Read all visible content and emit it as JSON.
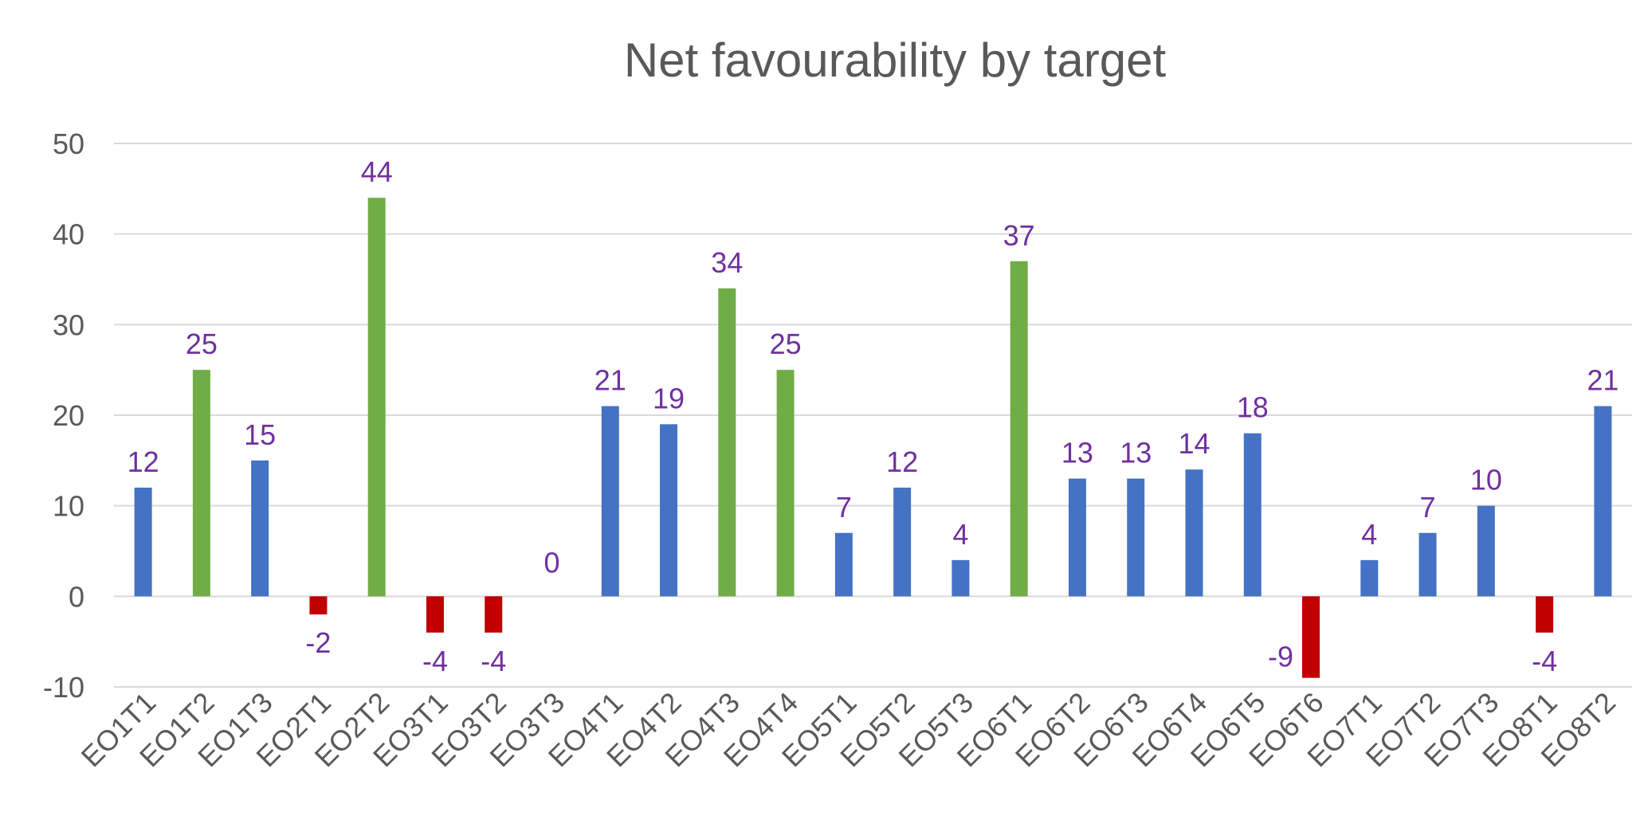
{
  "chart_data": {
    "type": "bar",
    "title": "Net favourability by target",
    "xlabel": "",
    "ylabel": "",
    "ylim": [
      -10,
      50
    ],
    "yticks": [
      -10,
      0,
      10,
      20,
      30,
      40,
      50
    ],
    "grid": true,
    "legend": "none",
    "categories": [
      "EO1T1",
      "EO1T2",
      "EO1T3",
      "EO2T1",
      "EO2T2",
      "EO3T1",
      "EO3T2",
      "EO3T3",
      "EO4T1",
      "EO4T2",
      "EO4T3",
      "EO4T4",
      "EO5T1",
      "EO5T2",
      "EO5T3",
      "EO6T1",
      "EO6T2",
      "EO6T3",
      "EO6T4",
      "EO6T5",
      "EO6T6",
      "EO7T1",
      "EO7T2",
      "EO7T3",
      "EO8T1",
      "EO8T2"
    ],
    "values": [
      12,
      25,
      15,
      -2,
      44,
      -4,
      -4,
      0,
      21,
      19,
      34,
      25,
      7,
      12,
      4,
      37,
      13,
      13,
      14,
      18,
      -9,
      4,
      7,
      10,
      -4,
      21
    ],
    "bar_colors": [
      "#4472c4",
      "#70ad47",
      "#4472c4",
      "#c00000",
      "#70ad47",
      "#c00000",
      "#c00000",
      "#4472c4",
      "#4472c4",
      "#4472c4",
      "#70ad47",
      "#70ad47",
      "#4472c4",
      "#4472c4",
      "#4472c4",
      "#70ad47",
      "#4472c4",
      "#4472c4",
      "#4472c4",
      "#4472c4",
      "#c00000",
      "#4472c4",
      "#4472c4",
      "#4472c4",
      "#c00000",
      "#4472c4"
    ],
    "label_color": "#7030a0"
  }
}
